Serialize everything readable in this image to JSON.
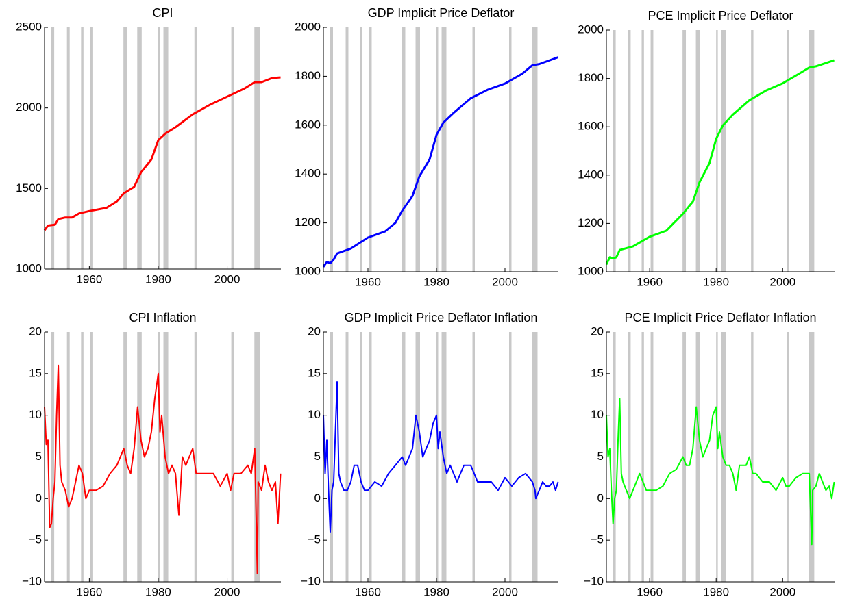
{
  "chart_data": [
    {
      "type": "line",
      "title": "CPI",
      "xlim": [
        1947,
        2015.6
      ],
      "xticks": [
        1960,
        1980,
        2000
      ],
      "ylim": [
        1000,
        2500
      ],
      "yticks": [
        1000,
        1500,
        2000,
        2500
      ],
      "shaded": [
        [
          1948.9,
          1949.8
        ],
        [
          1953.5,
          1954.3
        ],
        [
          1957.6,
          1958.3
        ],
        [
          1960.3,
          1961.1
        ],
        [
          1969.9,
          1970.9
        ],
        [
          1973.9,
          1975.2
        ],
        [
          1980.0,
          1980.5
        ],
        [
          1981.5,
          1982.9
        ],
        [
          1990.5,
          1991.2
        ],
        [
          2001.2,
          2001.9
        ],
        [
          2007.9,
          2009.5
        ]
      ],
      "x": [
        1947,
        1948,
        1950,
        1951,
        1953,
        1955,
        1957,
        1960,
        1965,
        1968,
        1970,
        1973,
        1975,
        1978,
        1980,
        1982,
        1985,
        1990,
        1995,
        2000,
        2005,
        2008,
        2010,
        2013,
        2015.5
      ],
      "series": [
        {
          "color": "#ff0000",
          "values": [
            1240,
            1270,
            1275,
            1310,
            1320,
            1320,
            1345,
            1360,
            1380,
            1420,
            1470,
            1510,
            1600,
            1680,
            1800,
            1840,
            1880,
            1960,
            2020,
            2070,
            2120,
            2160,
            2160,
            2185,
            2190
          ]
        }
      ]
    },
    {
      "type": "line",
      "title": "GDP Implicit Price Deflator",
      "xlim": [
        1947,
        2015.6
      ],
      "xticks": [
        1960,
        1980,
        2000
      ],
      "ylim": [
        1000,
        2000
      ],
      "yticks": [
        1000,
        1200,
        1400,
        1600,
        1800,
        2000
      ],
      "shaded": [
        [
          1948.9,
          1949.8
        ],
        [
          1953.5,
          1954.3
        ],
        [
          1957.6,
          1958.3
        ],
        [
          1960.3,
          1961.1
        ],
        [
          1969.9,
          1970.9
        ],
        [
          1973.9,
          1975.2
        ],
        [
          1980.0,
          1980.5
        ],
        [
          1981.5,
          1982.9
        ],
        [
          1990.5,
          1991.2
        ],
        [
          2001.2,
          2001.9
        ],
        [
          2007.9,
          2009.5
        ]
      ],
      "x": [
        1947,
        1948,
        1949,
        1950,
        1951,
        1955,
        1960,
        1965,
        1968,
        1970,
        1973,
        1975,
        1978,
        1980,
        1982,
        1985,
        1990,
        1995,
        2000,
        2005,
        2008,
        2010,
        2015.5
      ],
      "series": [
        {
          "color": "#0000ff",
          "values": [
            1020,
            1040,
            1035,
            1050,
            1075,
            1095,
            1140,
            1165,
            1200,
            1250,
            1310,
            1390,
            1460,
            1560,
            1610,
            1650,
            1710,
            1745,
            1770,
            1810,
            1845,
            1850,
            1878
          ]
        }
      ]
    },
    {
      "type": "line",
      "title": "PCE Implicit Price Deflator",
      "xlim": [
        1947,
        2015.6
      ],
      "xticks": [
        1960,
        1980,
        2000
      ],
      "ylim": [
        1000,
        2000
      ],
      "yticks": [
        1000,
        1200,
        1400,
        1600,
        1800,
        2000
      ],
      "shaded": [
        [
          1948.9,
          1949.8
        ],
        [
          1953.5,
          1954.3
        ],
        [
          1957.6,
          1958.3
        ],
        [
          1960.3,
          1961.1
        ],
        [
          1969.9,
          1970.9
        ],
        [
          1973.9,
          1975.2
        ],
        [
          1980.0,
          1980.5
        ],
        [
          1981.5,
          1982.9
        ],
        [
          1990.5,
          1991.2
        ],
        [
          2001.2,
          2001.9
        ],
        [
          2007.9,
          2009.5
        ]
      ],
      "x": [
        1947,
        1948,
        1949,
        1950,
        1951,
        1955,
        1960,
        1965,
        1970,
        1973,
        1975,
        1978,
        1980,
        1982,
        1985,
        1990,
        1995,
        2000,
        2005,
        2008,
        2010,
        2015.5
      ],
      "series": [
        {
          "color": "#00ff00",
          "values": [
            1030,
            1060,
            1055,
            1060,
            1090,
            1105,
            1145,
            1170,
            1240,
            1290,
            1370,
            1450,
            1550,
            1605,
            1650,
            1710,
            1750,
            1780,
            1820,
            1845,
            1850,
            1875
          ]
        }
      ]
    },
    {
      "type": "line",
      "title": "CPI Inflation",
      "xlim": [
        1947,
        2015.6
      ],
      "xticks": [
        1960,
        1980,
        2000
      ],
      "ylim": [
        -10,
        20
      ],
      "yticks": [
        {
          "value": -10,
          "label": "−10"
        },
        {
          "value": -5,
          "label": "−5"
        },
        0,
        5,
        10,
        15,
        20
      ],
      "shaded": [
        [
          1948.9,
          1949.8
        ],
        [
          1953.5,
          1954.3
        ],
        [
          1957.6,
          1958.3
        ],
        [
          1960.3,
          1961.1
        ],
        [
          1969.9,
          1970.9
        ],
        [
          1973.9,
          1975.2
        ],
        [
          1980.0,
          1980.5
        ],
        [
          1981.5,
          1982.9
        ],
        [
          1990.5,
          1991.2
        ],
        [
          2001.2,
          2001.9
        ],
        [
          2007.9,
          2009.5
        ]
      ],
      "x": [
        1947,
        1947.5,
        1948,
        1948.5,
        1949,
        1949.5,
        1950,
        1950.5,
        1951,
        1951.5,
        1952,
        1953,
        1954,
        1955,
        1956,
        1957,
        1958,
        1959,
        1960,
        1962,
        1964,
        1966,
        1968,
        1970,
        1971,
        1972,
        1973,
        1974,
        1975,
        1976,
        1977,
        1978,
        1979,
        1980,
        1980.5,
        1981,
        1982,
        1983,
        1984,
        1985,
        1986,
        1987,
        1988,
        1989,
        1990,
        1991,
        1992,
        1994,
        1996,
        1998,
        2000,
        2001,
        2002,
        2004,
        2006,
        2007,
        2008,
        2008.75,
        2009,
        2010,
        2011,
        2012,
        2013,
        2014,
        2014.75,
        2015.5
      ],
      "series": [
        {
          "color": "#ff0000",
          "values": [
            11,
            6.5,
            7,
            -3.5,
            -3,
            0,
            2,
            10,
            16,
            4,
            2,
            1,
            -1,
            0,
            2,
            4,
            3,
            0,
            1,
            1,
            1.5,
            3,
            4,
            6,
            4,
            3,
            6,
            11,
            7,
            5,
            6,
            8,
            12,
            15,
            8,
            10,
            5,
            3,
            4,
            3,
            -2,
            5,
            4,
            5,
            6,
            3,
            3,
            3,
            3,
            1.5,
            3,
            1,
            3,
            3,
            4,
            3,
            6,
            -9,
            2,
            1,
            4,
            2,
            1,
            2,
            -3,
            3
          ]
        }
      ]
    },
    {
      "type": "line",
      "title": "GDP Implicit Price Deflator Inflation",
      "xlim": [
        1947,
        2015.6
      ],
      "xticks": [
        1960,
        1980,
        2000
      ],
      "ylim": [
        -10,
        20
      ],
      "yticks": [
        {
          "value": -10,
          "label": "−10"
        },
        {
          "value": -5,
          "label": "−5"
        },
        0,
        5,
        10,
        15,
        20
      ],
      "shaded": [
        [
          1948.9,
          1949.8
        ],
        [
          1953.5,
          1954.3
        ],
        [
          1957.6,
          1958.3
        ],
        [
          1960.3,
          1961.1
        ],
        [
          1969.9,
          1970.9
        ],
        [
          1973.9,
          1975.2
        ],
        [
          1980.0,
          1980.5
        ],
        [
          1981.5,
          1982.9
        ],
        [
          1990.5,
          1991.2
        ],
        [
          2001.2,
          2001.9
        ],
        [
          2007.9,
          2009.5
        ]
      ],
      "x": [
        1947,
        1947.5,
        1948,
        1948.5,
        1949,
        1949.5,
        1950,
        1950.5,
        1951,
        1951.5,
        1952,
        1953,
        1954,
        1955,
        1956,
        1957,
        1958,
        1959,
        1960,
        1962,
        1964,
        1966,
        1968,
        1970,
        1971,
        1972,
        1973,
        1974,
        1975,
        1976,
        1977,
        1978,
        1979,
        1980,
        1980.5,
        1981,
        1982,
        1983,
        1984,
        1985,
        1986,
        1987,
        1988,
        1989,
        1990,
        1991,
        1992,
        1994,
        1996,
        1998,
        2000,
        2001,
        2002,
        2004,
        2006,
        2007,
        2008,
        2008.75,
        2009,
        2010,
        2011,
        2012,
        2013,
        2014,
        2014.75,
        2015.5
      ],
      "series": [
        {
          "color": "#0000ff",
          "values": [
            10,
            3,
            7,
            1,
            -4,
            1,
            2,
            8,
            14,
            3,
            2,
            1,
            1,
            2,
            4,
            4,
            2,
            1,
            1,
            2,
            1.5,
            3,
            4,
            5,
            4,
            5,
            6,
            10,
            8,
            5,
            6,
            7,
            9,
            10,
            6,
            8,
            5,
            3,
            4,
            3,
            2,
            3,
            4,
            4,
            4,
            3,
            2,
            2,
            2,
            1,
            2.5,
            2,
            1.5,
            2.5,
            3,
            2.5,
            2,
            1,
            0,
            1,
            2,
            1.5,
            1.5,
            2,
            1,
            2
          ]
        }
      ]
    },
    {
      "type": "line",
      "title": "PCE Implicit Price Deflator Inflation",
      "xlim": [
        1947,
        2015.6
      ],
      "xticks": [
        1960,
        1980,
        2000
      ],
      "ylim": [
        -10,
        20
      ],
      "yticks": [
        {
          "value": -10,
          "label": "−10"
        },
        {
          "value": -5,
          "label": "−5"
        },
        0,
        5,
        10,
        15,
        20
      ],
      "shaded": [
        [
          1948.9,
          1949.8
        ],
        [
          1953.5,
          1954.3
        ],
        [
          1957.6,
          1958.3
        ],
        [
          1960.3,
          1961.1
        ],
        [
          1969.9,
          1970.9
        ],
        [
          1973.9,
          1975.2
        ],
        [
          1980.0,
          1980.5
        ],
        [
          1981.5,
          1982.9
        ],
        [
          1990.5,
          1991.2
        ],
        [
          2001.2,
          2001.9
        ],
        [
          2007.9,
          2009.5
        ]
      ],
      "x": [
        1947,
        1947.5,
        1948,
        1948.5,
        1949,
        1949.5,
        1950,
        1950.5,
        1951,
        1951.5,
        1952,
        1953,
        1954,
        1955,
        1956,
        1957,
        1958,
        1959,
        1960,
        1962,
        1964,
        1966,
        1968,
        1970,
        1971,
        1972,
        1973,
        1974,
        1975,
        1976,
        1977,
        1978,
        1979,
        1980,
        1980.5,
        1981,
        1982,
        1983,
        1984,
        1985,
        1986,
        1987,
        1988,
        1989,
        1990,
        1991,
        1992,
        1994,
        1996,
        1998,
        2000,
        2001,
        2002,
        2004,
        2006,
        2007,
        2008,
        2008.75,
        2009,
        2010,
        2011,
        2012,
        2013,
        2014,
        2014.75,
        2015.5
      ],
      "series": [
        {
          "color": "#00ff00",
          "values": [
            10,
            5,
            6,
            1,
            -3,
            0,
            1,
            7,
            12,
            3,
            2,
            1,
            0,
            1,
            2,
            3,
            2,
            1,
            1,
            1,
            1.5,
            3,
            3.5,
            5,
            4,
            4,
            6,
            11,
            7,
            5,
            6,
            7,
            10,
            11,
            6,
            8,
            5,
            4,
            4,
            3,
            1,
            4,
            4,
            4,
            5,
            3,
            3,
            2,
            2,
            1,
            2.5,
            1.5,
            1.5,
            2.5,
            3,
            3,
            3,
            -5.5,
            1,
            1.5,
            3,
            2,
            1,
            1.5,
            0,
            2
          ]
        }
      ]
    }
  ]
}
